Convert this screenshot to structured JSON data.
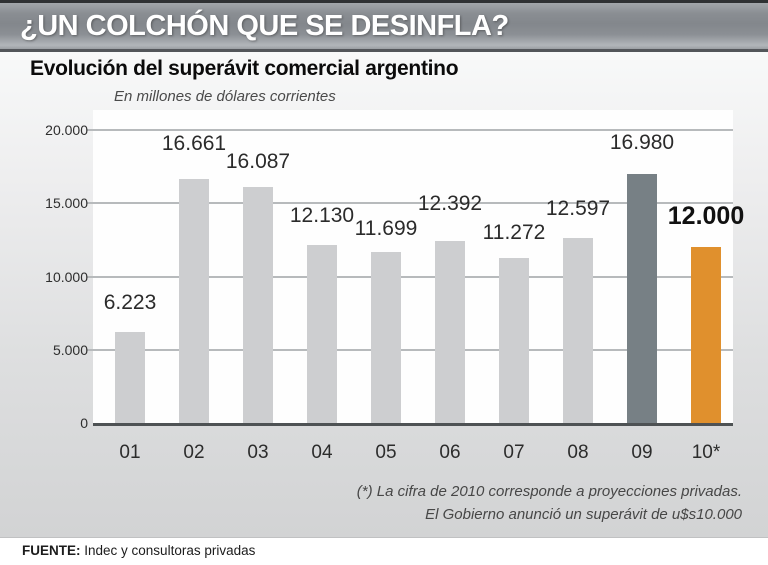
{
  "banner": {
    "title": "¿UN COLCHÓN QUE SE DESINFLA?"
  },
  "chart_data": {
    "type": "bar",
    "title": "Evolución del superávit comercial argentino",
    "subtitle": "En millones de dólares corrientes",
    "categories": [
      "01",
      "02",
      "03",
      "04",
      "05",
      "06",
      "07",
      "08",
      "09",
      "10*"
    ],
    "values": [
      6223,
      16661,
      16087,
      12130,
      11699,
      12392,
      11272,
      12597,
      16980,
      12000
    ],
    "value_labels": [
      "6.223",
      "16.661",
      "16.087",
      "12.130",
      "11.699",
      "12.392",
      "11.272",
      "12.597",
      "16.980",
      "12.000"
    ],
    "bar_styles": [
      "default",
      "default",
      "default",
      "default",
      "default",
      "default",
      "default",
      "default",
      "dark",
      "accent"
    ],
    "xlabel": "",
    "ylabel": "",
    "ylim": [
      0,
      20000
    ],
    "yticks": [
      0,
      5000,
      10000,
      15000,
      20000
    ],
    "ytick_labels": [
      "0",
      "5.000",
      "10.000",
      "15.000",
      "20.000"
    ],
    "grid": true,
    "legend": false,
    "colors": {
      "default": "#cdced0",
      "dark": "#778085",
      "accent": "#e0902d"
    }
  },
  "footnote": {
    "line1": "(*) La cifra de 2010 corresponde a proyecciones privadas.",
    "line2": "El Gobierno anunció un superávit de u$s10.000"
  },
  "source": {
    "label": "FUENTE:",
    "text": "Indec y consultoras privadas"
  }
}
